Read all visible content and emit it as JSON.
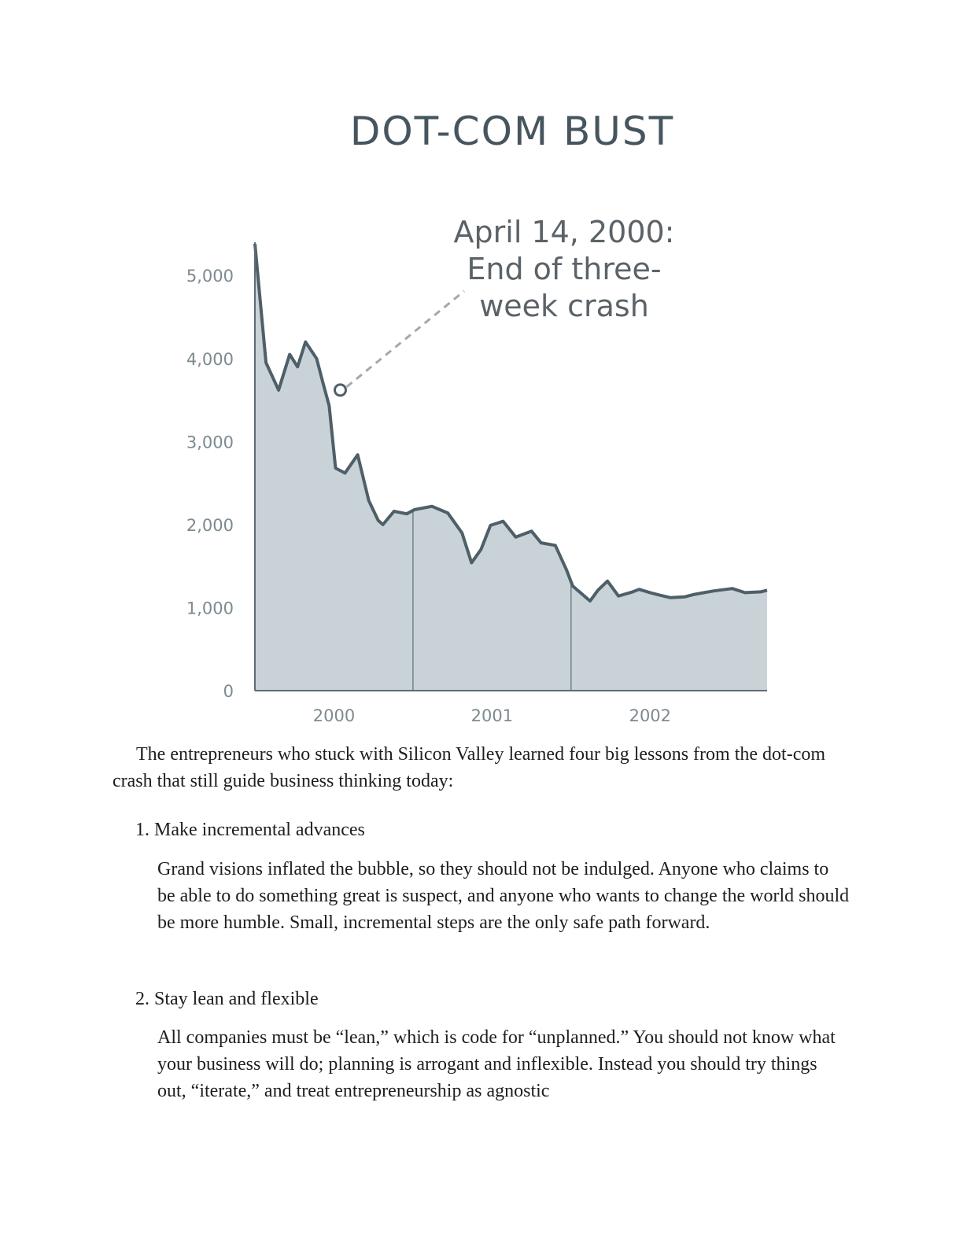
{
  "chart_data": {
    "type": "area",
    "title": "DOT-COM BUST",
    "annotation": {
      "lines": [
        "April 14, 2000:",
        "End of three-",
        "week crash"
      ],
      "x": 2000.29,
      "y": 3620
    },
    "ylim": [
      0,
      5400
    ],
    "yticks": [
      0,
      1000,
      2000,
      3000,
      4000,
      5000
    ],
    "ytick_labels": [
      "0",
      "1,000",
      "2,000",
      "3,000",
      "4,000",
      "5,000"
    ],
    "xlim": [
      1999.75,
      2002.99
    ],
    "x_labels": [
      {
        "label": "2000",
        "x": 2000.25
      },
      {
        "label": "2001",
        "x": 2001.25
      },
      {
        "label": "2002",
        "x": 2002.25
      }
    ],
    "year_dividers": [
      2000.75,
      2001.75
    ],
    "grid": false,
    "x": [
      1999.75,
      1999.82,
      1999.9,
      1999.97,
      2000.02,
      2000.07,
      2000.14,
      2000.18,
      2000.22,
      2000.26,
      2000.32,
      2000.4,
      2000.47,
      2000.53,
      2000.56,
      2000.63,
      2000.71,
      2000.76,
      2000.87,
      2000.97,
      2001.06,
      2001.12,
      2001.18,
      2001.24,
      2001.32,
      2001.4,
      2001.5,
      2001.56,
      2001.65,
      2001.72,
      2001.76,
      2001.87,
      2001.92,
      2001.98,
      2002.05,
      2002.14,
      2002.18,
      2002.25,
      2002.31,
      2002.38,
      2002.47,
      2002.53,
      2002.65,
      2002.77,
      2002.85,
      2002.95,
      2002.99
    ],
    "y": [
      5380,
      3950,
      3620,
      4050,
      3900,
      4200,
      4000,
      3710,
      3430,
      2680,
      2620,
      2840,
      2290,
      2050,
      2000,
      2160,
      2130,
      2180,
      2220,
      2140,
      1900,
      1540,
      1700,
      1990,
      2040,
      1850,
      1920,
      1780,
      1750,
      1460,
      1260,
      1080,
      1210,
      1320,
      1140,
      1190,
      1220,
      1180,
      1150,
      1120,
      1130,
      1160,
      1200,
      1230,
      1180,
      1190,
      1210
    ]
  },
  "text": {
    "intro": "The entrepreneurs who stuck with Silicon Valley learned four big lessons from the dot-com crash that still guide business thinking today:",
    "item1_head": "1. Make incremental advances",
    "item1_body": "Grand visions inflated the bubble, so they should not be indulged. Anyone who claims to be able to do something great is suspect, and anyone who wants to change the world should be more humble. Small, incremental steps are the only safe path forward.",
    "item2_head": "2. Stay lean and flexible",
    "item2_body": "All companies must be “lean,” which is code for “unplanned.” You should not know what your business will do; planning is arrogant and inflexible. Instead you should try things out, “iterate,” and treat entrepreneurship as agnostic"
  }
}
